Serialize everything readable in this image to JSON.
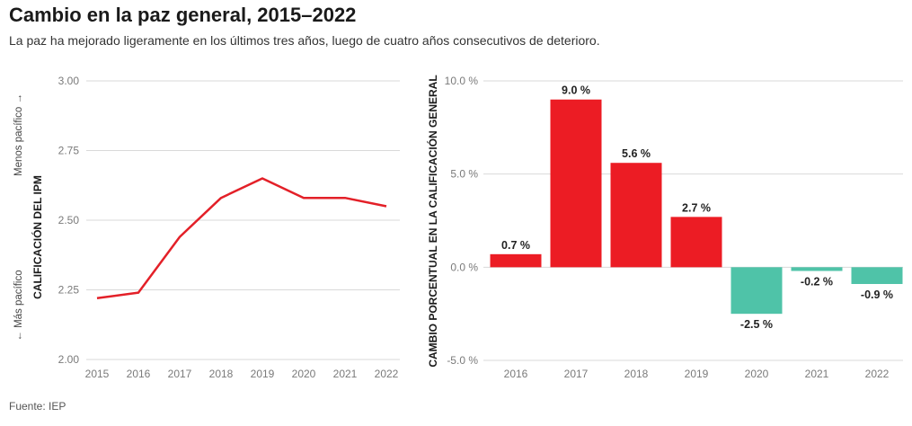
{
  "title": "Cambio en la paz general, 2015–2022",
  "subtitle": "La paz ha mejorado ligeramente en los últimos tres años, luego de cuatro años consecutivos de deterioro.",
  "source": "Fuente: IEP",
  "colors": {
    "line": "#e32028",
    "positive": "#ec1c24",
    "negative": "#4fc3a8",
    "grid": "#d9d9d9",
    "tick": "#7a7a7a"
  },
  "chart_data": [
    {
      "type": "line",
      "x": [
        "2015",
        "2016",
        "2017",
        "2018",
        "2019",
        "2020",
        "2021",
        "2022"
      ],
      "series": [
        {
          "values": [
            2.22,
            2.24,
            2.44,
            2.58,
            2.65,
            2.58,
            2.58,
            2.55
          ]
        }
      ],
      "ylabel": "CALIFICACIÓN DEL IPM",
      "ylabel_top": "Menos pacífico",
      "ylabel_bottom": "Más pacífico",
      "ylim": [
        2.0,
        3.0
      ],
      "yticks": [
        "3.00",
        "2.75",
        "2.50",
        "2.25",
        "2.00"
      ],
      "grid": true
    },
    {
      "type": "bar",
      "categories": [
        "2016",
        "2017",
        "2018",
        "2019",
        "2020",
        "2021",
        "2022"
      ],
      "values": [
        0.7,
        9.0,
        5.6,
        2.7,
        -2.5,
        -0.2,
        -0.9
      ],
      "value_labels": [
        "0.7 %",
        "9.0 %",
        "5.6 %",
        "2.7 %",
        "-2.5 %",
        "-0.2 %",
        "-0.9 %"
      ],
      "ylabel": "CAMBIO PORCENTUAL EN LA CALIFICACIÓN GENERAL",
      "ylim": [
        -5,
        10
      ],
      "yticks": [
        "10.0 %",
        "5.0 %",
        "0.0 %",
        "-5.0 %"
      ],
      "grid": true
    }
  ]
}
